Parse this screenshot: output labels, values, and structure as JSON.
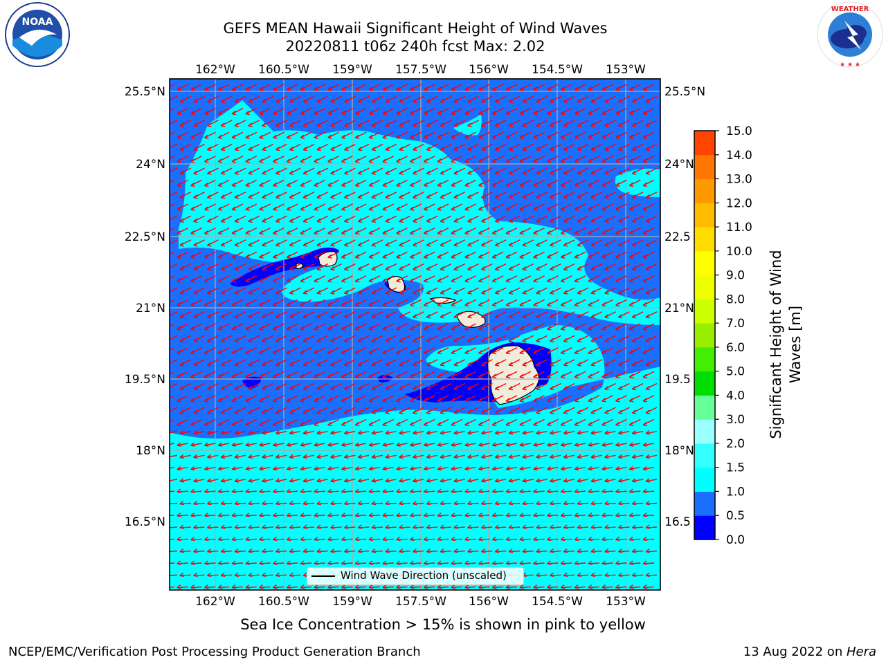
{
  "title_line1": "GEFS MEAN Hawaii Significant Height of Wind Waves",
  "title_line2": "20220811 t06z 240h fcst   Max: 2.02",
  "lon_ticks": [
    "162°W",
    "160.5°W",
    "159°W",
    "157.5°W",
    "156°W",
    "154.5°W",
    "153°W"
  ],
  "lat_ticks_left": [
    "25.5°N",
    "24°N",
    "22.5°N",
    "21°N",
    "19.5°N",
    "18°N",
    "16.5°N"
  ],
  "lat_ticks_right": [
    "25.5°N",
    "24°N",
    "22.5",
    "21°N",
    "19.5",
    "18°N",
    "16.5"
  ],
  "colorbar": {
    "label": "Significant Height of Wind Waves [m]",
    "ticks": [
      "15.0",
      "14.0",
      "13.0",
      "12.0",
      "11.0",
      "10.0",
      "9.0",
      "8.0",
      "7.0",
      "6.0",
      "5.0",
      "4.0",
      "3.0",
      "2.0",
      "1.5",
      "1.0",
      "0.5",
      "0.0"
    ],
    "colors": [
      "#0000ff",
      "#1a6fff",
      "#00ffff",
      "#33ffff",
      "#99ffff",
      "#66ff99",
      "#00dd00",
      "#44ee00",
      "#99ee00",
      "#ccff00",
      "#eeff00",
      "#ffff00",
      "#ffdd00",
      "#ffbb00",
      "#ff9900",
      "#ff7700",
      "#ff4400",
      "#ff1100",
      "#ff0000"
    ]
  },
  "legend_text": "Wind Wave Direction (unscaled)",
  "note": "Sea Ice Concentration > 15% is shown in pink to yellow",
  "footer_left": "NCEP/EMC/Verification Post Processing Product Generation Branch",
  "footer_right_prefix": "13 Aug 2022 on ",
  "footer_right_host": "Hera",
  "logo_left": "NOAA",
  "logo_right": "NATIONAL WEATHER SERVICE",
  "colors": {
    "deep": "#0000ff",
    "mid": "#1a6fff",
    "light": "#00ffff",
    "arrow": "#ff0000",
    "land": "#efecdc",
    "grid": "#aaaaaa"
  }
}
